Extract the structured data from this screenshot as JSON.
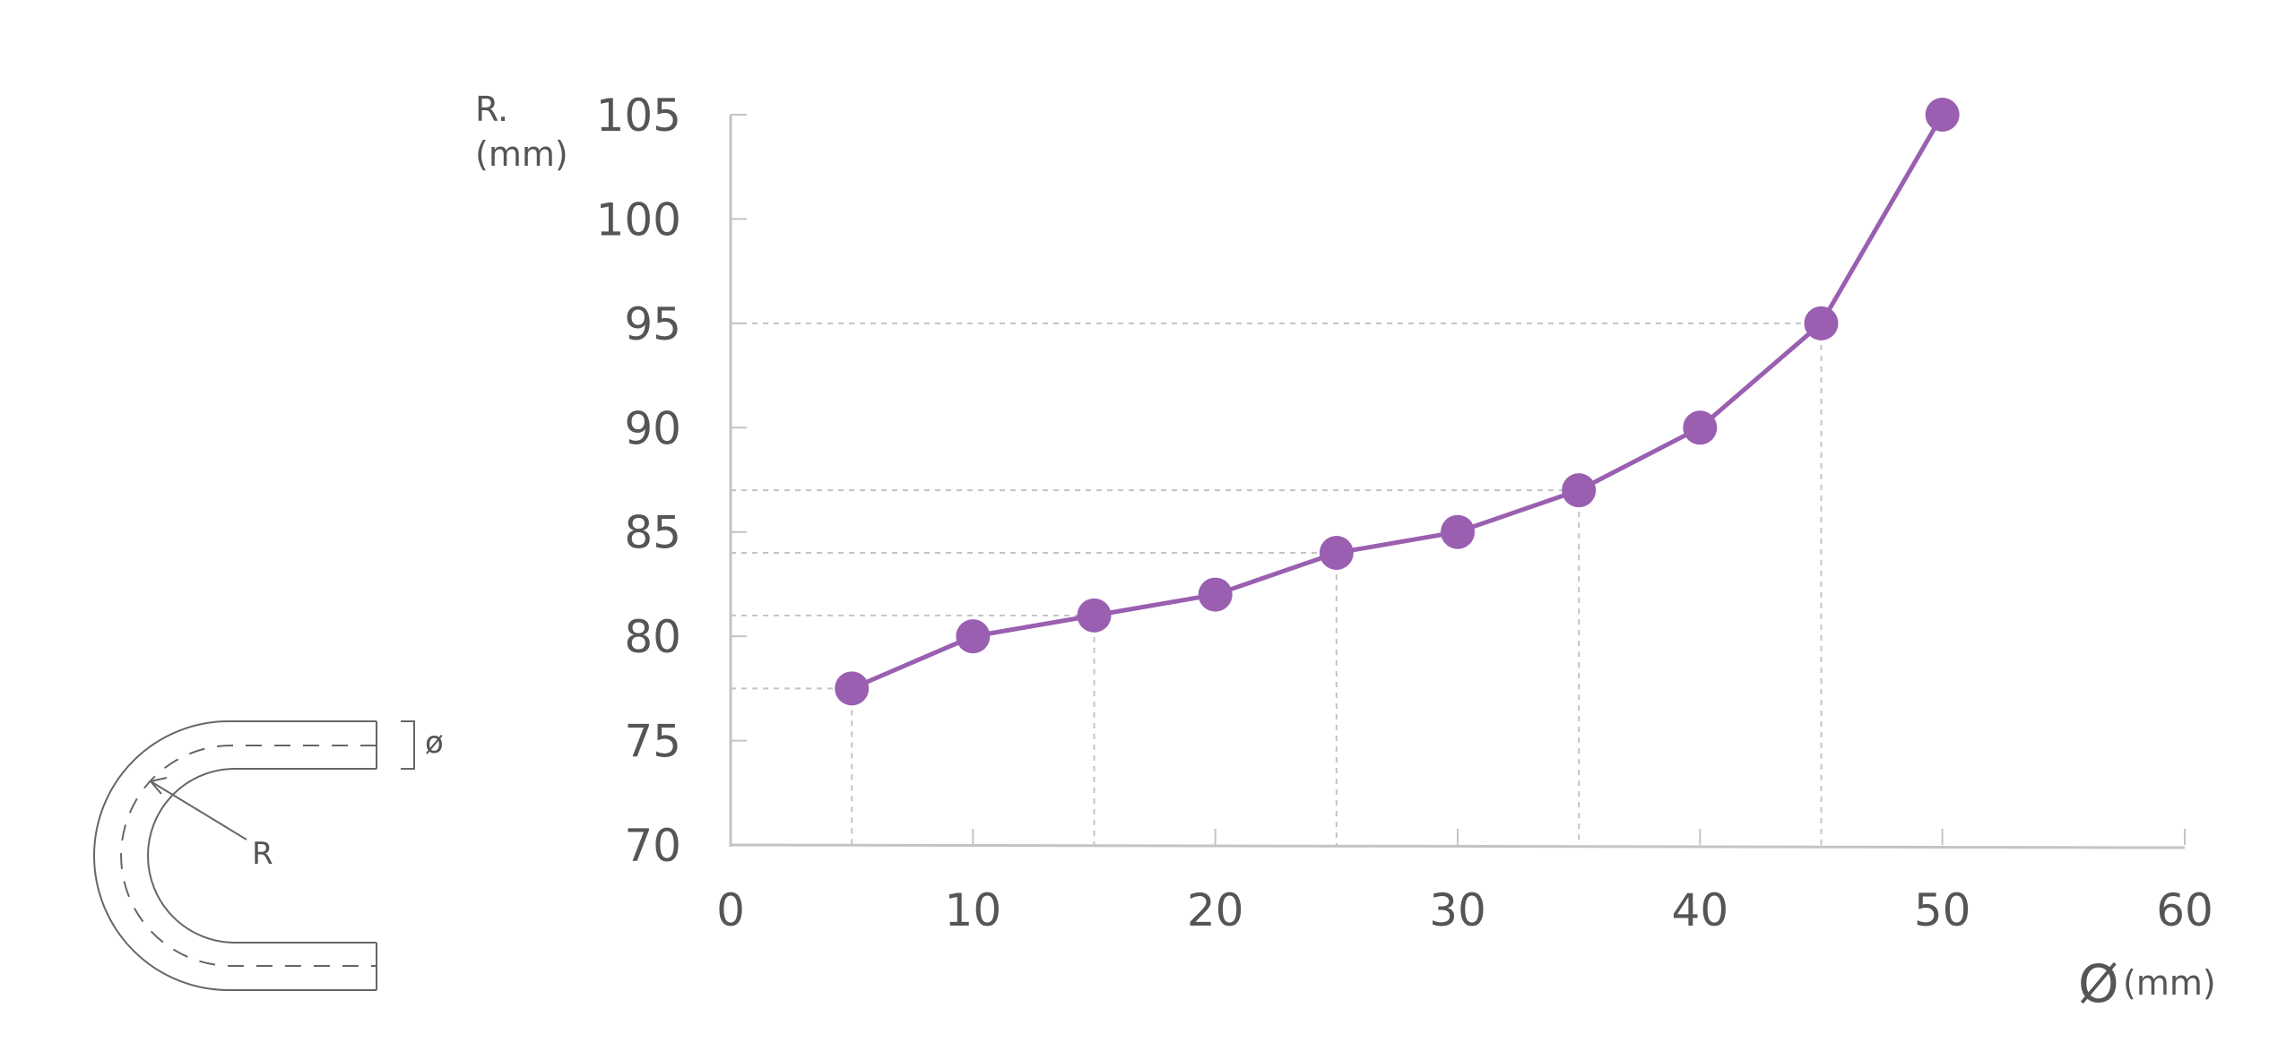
{
  "chart_data": {
    "type": "line",
    "ylabel_line1": "R.",
    "ylabel_line2": "(mm)",
    "xlabel_symbol": "Ø",
    "xlabel_unit": "(mm)",
    "xlim": [
      0,
      60
    ],
    "ylim": [
      70,
      105
    ],
    "x_ticks": [
      0,
      10,
      20,
      30,
      40,
      50,
      60
    ],
    "y_ticks": [
      70,
      75,
      80,
      85,
      90,
      95,
      100,
      105
    ],
    "x_tick_labels": [
      "0",
      "10",
      "20",
      "30",
      "40",
      "50",
      "60"
    ],
    "y_tick_labels": [
      "70",
      "75",
      "80",
      "85",
      "90",
      "95",
      "100",
      "105"
    ],
    "x": [
      5,
      10,
      15,
      20,
      25,
      30,
      35,
      40,
      45,
      50
    ],
    "y": [
      77.5,
      80,
      81,
      82,
      84,
      85,
      87,
      90,
      95,
      105
    ],
    "reference_points": [
      5,
      15,
      25,
      35,
      45
    ],
    "grid": false,
    "line_color": "#9a5fb0",
    "axis_color": "#c4c4c4",
    "guide_color": "#c4c4c4"
  },
  "diagram": {
    "radius_label": "R",
    "diameter_label": "ø"
  }
}
